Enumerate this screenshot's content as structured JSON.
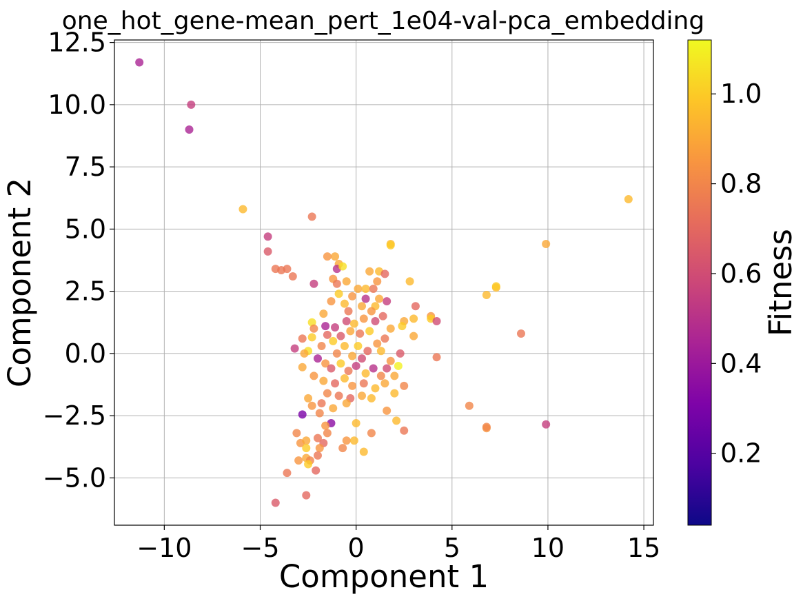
{
  "chart_data": {
    "type": "scatter",
    "title": "one_hot_gene-mean_pert_1e04-val-pca_embedding",
    "xlabel": "Component 1",
    "ylabel": "Component 2",
    "xlim": [
      -12.6,
      15.5
    ],
    "ylim": [
      -6.9,
      12.6
    ],
    "xticks": [
      -10,
      -5,
      0,
      5,
      10,
      15
    ],
    "xtick_labels": [
      "−10",
      "−5",
      "0",
      "5",
      "10",
      "15"
    ],
    "yticks": [
      -5.0,
      -2.5,
      0.0,
      2.5,
      5.0,
      7.5,
      10.0,
      12.5
    ],
    "ytick_labels": [
      "−5.0",
      "−2.5",
      "0.0",
      "2.5",
      "5.0",
      "7.5",
      "10.0",
      "12.5"
    ],
    "grid": true,
    "colorbar": {
      "label": "Fitness",
      "colormap": "plasma",
      "range": [
        0.04,
        1.12
      ],
      "ticks": [
        0.2,
        0.4,
        0.6,
        0.8,
        1.0
      ],
      "tick_labels": [
        "0.2",
        "0.4",
        "0.6",
        "0.8",
        "1.0"
      ]
    },
    "points": [
      {
        "x": -11.3,
        "y": 11.7,
        "c": 0.45
      },
      {
        "x": -8.6,
        "y": 10.0,
        "c": 0.55
      },
      {
        "x": -8.7,
        "y": 9.0,
        "c": 0.45
      },
      {
        "x": -5.9,
        "y": 5.8,
        "c": 0.95
      },
      {
        "x": -2.3,
        "y": 5.5,
        "c": 0.75
      },
      {
        "x": -4.6,
        "y": 4.7,
        "c": 0.55
      },
      {
        "x": -4.6,
        "y": 4.1,
        "c": 0.65
      },
      {
        "x": -4.2,
        "y": 3.4,
        "c": 0.75
      },
      {
        "x": -3.6,
        "y": 3.4,
        "c": 0.75
      },
      {
        "x": -3.9,
        "y": 3.35,
        "c": 0.75
      },
      {
        "x": -3.3,
        "y": 3.1,
        "c": 0.75
      },
      {
        "x": -2.2,
        "y": 2.8,
        "c": 0.55
      },
      {
        "x": -1.1,
        "y": 3.9,
        "c": 0.9
      },
      {
        "x": -1.5,
        "y": 3.9,
        "c": 0.85
      },
      {
        "x": -0.9,
        "y": 3.6,
        "c": 0.9
      },
      {
        "x": -1.0,
        "y": 3.4,
        "c": 0.5
      },
      {
        "x": -0.7,
        "y": 3.5,
        "c": 1.05
      },
      {
        "x": -1.2,
        "y": 3.0,
        "c": 0.85
      },
      {
        "x": -0.5,
        "y": 2.9,
        "c": 0.9
      },
      {
        "x": -1.0,
        "y": 2.8,
        "c": 0.75
      },
      {
        "x": 0.7,
        "y": 3.3,
        "c": 0.9
      },
      {
        "x": 1.2,
        "y": 3.3,
        "c": 0.95
      },
      {
        "x": 1.5,
        "y": 3.2,
        "c": 0.7
      },
      {
        "x": 1.8,
        "y": 4.4,
        "c": 0.95
      },
      {
        "x": 1.8,
        "y": 4.35,
        "c": 1.0
      },
      {
        "x": 2.8,
        "y": 2.9,
        "c": 0.95
      },
      {
        "x": 1.1,
        "y": 2.9,
        "c": 0.85
      },
      {
        "x": 0.1,
        "y": 2.6,
        "c": 0.9
      },
      {
        "x": 0.5,
        "y": 2.6,
        "c": 0.95
      },
      {
        "x": 0.9,
        "y": 2.6,
        "c": 0.75
      },
      {
        "x": -0.2,
        "y": 2.3,
        "c": 0.85
      },
      {
        "x": 0.5,
        "y": 2.2,
        "c": 0.5
      },
      {
        "x": 1.6,
        "y": 2.1,
        "c": 0.55
      },
      {
        "x": 1.2,
        "y": 2.2,
        "c": 0.9
      },
      {
        "x": -0.9,
        "y": 2.4,
        "c": 1.0
      },
      {
        "x": -1.3,
        "y": 2.1,
        "c": 0.85
      },
      {
        "x": -0.6,
        "y": 2.0,
        "c": 0.95
      },
      {
        "x": 0.3,
        "y": 1.9,
        "c": 0.9
      },
      {
        "x": 1.0,
        "y": 1.9,
        "c": 0.95
      },
      {
        "x": -1.7,
        "y": 1.6,
        "c": 0.9
      },
      {
        "x": -0.4,
        "y": 1.7,
        "c": 0.75
      },
      {
        "x": 0.8,
        "y": 1.7,
        "c": 0.85
      },
      {
        "x": 1.4,
        "y": 1.5,
        "c": 0.7
      },
      {
        "x": 3.1,
        "y": 1.9,
        "c": 0.7
      },
      {
        "x": 3.0,
        "y": 1.4,
        "c": 0.95
      },
      {
        "x": 3.9,
        "y": 1.5,
        "c": 0.85
      },
      {
        "x": 3.9,
        "y": 1.4,
        "c": 1.0
      },
      {
        "x": 4.2,
        "y": 1.3,
        "c": 0.6
      },
      {
        "x": 2.5,
        "y": 1.3,
        "c": 0.9
      },
      {
        "x": 2.4,
        "y": 1.1,
        "c": 1.0
      },
      {
        "x": 3.0,
        "y": 0.7,
        "c": 0.9
      },
      {
        "x": 6.8,
        "y": 2.35,
        "c": 0.95
      },
      {
        "x": 7.3,
        "y": 2.65,
        "c": 0.95
      },
      {
        "x": 7.3,
        "y": 2.7,
        "c": 1.0
      },
      {
        "x": 9.9,
        "y": 4.4,
        "c": 0.9
      },
      {
        "x": 14.2,
        "y": 6.2,
        "c": 0.95
      },
      {
        "x": 8.6,
        "y": 0.8,
        "c": 0.75
      },
      {
        "x": 4.2,
        "y": -0.15,
        "c": 0.75
      },
      {
        "x": 5.9,
        "y": -2.1,
        "c": 0.8
      },
      {
        "x": 6.8,
        "y": -3.0,
        "c": 0.85
      },
      {
        "x": 6.8,
        "y": -2.95,
        "c": 0.8
      },
      {
        "x": 9.9,
        "y": -2.85,
        "c": 0.55
      },
      {
        "x": -2.3,
        "y": 1.25,
        "c": 1.05
      },
      {
        "x": -2.2,
        "y": 1.0,
        "c": 0.8
      },
      {
        "x": -1.6,
        "y": 1.1,
        "c": 0.45
      },
      {
        "x": -1.1,
        "y": 1.05,
        "c": 0.55
      },
      {
        "x": -0.5,
        "y": 1.3,
        "c": 0.6
      },
      {
        "x": -0.1,
        "y": 1.2,
        "c": 0.95
      },
      {
        "x": 0.4,
        "y": 1.4,
        "c": 0.85
      },
      {
        "x": 1.0,
        "y": 1.3,
        "c": 0.6
      },
      {
        "x": 1.8,
        "y": 1.0,
        "c": 0.9
      },
      {
        "x": 1.5,
        "y": 0.6,
        "c": 0.75
      },
      {
        "x": -2.3,
        "y": 0.65,
        "c": 1.0
      },
      {
        "x": -2.8,
        "y": 0.6,
        "c": 0.75
      },
      {
        "x": -3.2,
        "y": 0.2,
        "c": 0.55
      },
      {
        "x": -2.5,
        "y": 0.1,
        "c": 1.05
      },
      {
        "x": -2.7,
        "y": 0.0,
        "c": 0.9
      },
      {
        "x": -1.8,
        "y": 0.3,
        "c": 0.8
      },
      {
        "x": -1.5,
        "y": 0.75,
        "c": 0.7
      },
      {
        "x": -1.2,
        "y": 0.5,
        "c": 1.0
      },
      {
        "x": -0.8,
        "y": 0.7,
        "c": 0.65
      },
      {
        "x": -0.3,
        "y": 0.9,
        "c": 0.9
      },
      {
        "x": 0.2,
        "y": 0.8,
        "c": 0.75
      },
      {
        "x": 0.7,
        "y": 0.9,
        "c": 1.0
      },
      {
        "x": 1.1,
        "y": 0.4,
        "c": 0.85
      },
      {
        "x": -0.6,
        "y": 0.3,
        "c": 0.95
      },
      {
        "x": 0.1,
        "y": 0.3,
        "c": 1.0
      },
      {
        "x": 0.6,
        "y": 0.1,
        "c": 0.7
      },
      {
        "x": 1.3,
        "y": 0.1,
        "c": 0.95
      },
      {
        "x": -1.0,
        "y": 0.0,
        "c": 0.8
      },
      {
        "x": -0.2,
        "y": -0.1,
        "c": 0.9
      },
      {
        "x": 0.3,
        "y": -0.2,
        "c": 0.6
      },
      {
        "x": 1.8,
        "y": -0.3,
        "c": 0.85
      },
      {
        "x": 2.3,
        "y": 0.0,
        "c": 0.65
      },
      {
        "x": 2.2,
        "y": -0.5,
        "c": 1.1
      },
      {
        "x": -2.8,
        "y": -0.55,
        "c": 0.9
      },
      {
        "x": -2.0,
        "y": -0.2,
        "c": 0.45
      },
      {
        "x": -1.6,
        "y": -0.4,
        "c": 0.85
      },
      {
        "x": -1.3,
        "y": -0.6,
        "c": 0.65
      },
      {
        "x": -0.8,
        "y": -0.4,
        "c": 1.0
      },
      {
        "x": -0.4,
        "y": -0.7,
        "c": 0.75
      },
      {
        "x": 0.0,
        "y": -0.5,
        "c": 0.55
      },
      {
        "x": 0.5,
        "y": -0.8,
        "c": 0.95
      },
      {
        "x": 0.9,
        "y": -0.6,
        "c": 0.5
      },
      {
        "x": 1.3,
        "y": -0.9,
        "c": 0.8
      },
      {
        "x": 1.6,
        "y": -0.6,
        "c": 0.6
      },
      {
        "x": 2.0,
        "y": -0.9,
        "c": 0.9
      },
      {
        "x": 2.5,
        "y": -1.3,
        "c": 0.8
      },
      {
        "x": -2.2,
        "y": -0.9,
        "c": 0.85
      },
      {
        "x": -1.7,
        "y": -1.1,
        "c": 0.9
      },
      {
        "x": -1.1,
        "y": -1.2,
        "c": 0.7
      },
      {
        "x": -0.6,
        "y": -1.0,
        "c": 0.95
      },
      {
        "x": -0.2,
        "y": -1.3,
        "c": 0.85
      },
      {
        "x": 0.4,
        "y": -1.2,
        "c": 0.75
      },
      {
        "x": 1.0,
        "y": -1.4,
        "c": 0.95
      },
      {
        "x": 1.5,
        "y": -1.2,
        "c": 0.9
      },
      {
        "x": 2.0,
        "y": -1.6,
        "c": 0.95
      },
      {
        "x": -1.5,
        "y": -1.6,
        "c": 0.8
      },
      {
        "x": -0.9,
        "y": -1.7,
        "c": 0.75
      },
      {
        "x": -0.3,
        "y": -1.8,
        "c": 0.7
      },
      {
        "x": 0.3,
        "y": -1.7,
        "c": 0.9
      },
      {
        "x": 0.8,
        "y": -1.8,
        "c": 0.95
      },
      {
        "x": -2.5,
        "y": -1.8,
        "c": 0.9
      },
      {
        "x": -2.3,
        "y": -2.1,
        "c": 0.85
      },
      {
        "x": -1.8,
        "y": -2.0,
        "c": 0.75
      },
      {
        "x": -1.2,
        "y": -2.2,
        "c": 0.9
      },
      {
        "x": -0.5,
        "y": -2.0,
        "c": 0.9
      },
      {
        "x": 1.6,
        "y": -2.3,
        "c": 0.85
      },
      {
        "x": 2.1,
        "y": -2.7,
        "c": 0.95
      },
      {
        "x": -2.8,
        "y": -2.45,
        "c": 0.3
      },
      {
        "x": -1.3,
        "y": -2.8,
        "c": 0.35
      },
      {
        "x": -1.9,
        "y": -2.4,
        "c": 0.8
      },
      {
        "x": -1.6,
        "y": -2.9,
        "c": 0.85
      },
      {
        "x": 0.0,
        "y": -2.8,
        "c": 0.95
      },
      {
        "x": -3.1,
        "y": -3.2,
        "c": 0.8
      },
      {
        "x": -2.9,
        "y": -3.6,
        "c": 0.85
      },
      {
        "x": -2.6,
        "y": -3.5,
        "c": 0.9
      },
      {
        "x": -2.0,
        "y": -3.4,
        "c": 0.75
      },
      {
        "x": -1.7,
        "y": -3.6,
        "c": 0.7
      },
      {
        "x": -1.5,
        "y": -3.2,
        "c": 0.8
      },
      {
        "x": -0.5,
        "y": -3.5,
        "c": 0.85
      },
      {
        "x": -0.1,
        "y": -3.5,
        "c": 0.95
      },
      {
        "x": 0.8,
        "y": -3.2,
        "c": 0.8
      },
      {
        "x": 2.5,
        "y": -3.1,
        "c": 0.75
      },
      {
        "x": -2.6,
        "y": -3.8,
        "c": 1.0
      },
      {
        "x": -1.9,
        "y": -3.8,
        "c": 0.85
      },
      {
        "x": -0.7,
        "y": -3.8,
        "c": 0.8
      },
      {
        "x": 0.4,
        "y": -3.95,
        "c": 0.95
      },
      {
        "x": -3.0,
        "y": -4.3,
        "c": 0.85
      },
      {
        "x": -2.6,
        "y": -4.2,
        "c": 0.9
      },
      {
        "x": -2.4,
        "y": -4.3,
        "c": 0.8
      },
      {
        "x": -2.5,
        "y": -4.45,
        "c": 1.0
      },
      {
        "x": -2.0,
        "y": -4.1,
        "c": 0.75
      },
      {
        "x": -2.1,
        "y": -4.7,
        "c": 0.7
      },
      {
        "x": -3.6,
        "y": -4.8,
        "c": 0.75
      },
      {
        "x": -2.6,
        "y": -5.7,
        "c": 0.7
      },
      {
        "x": -4.2,
        "y": -6.0,
        "c": 0.65
      }
    ]
  }
}
